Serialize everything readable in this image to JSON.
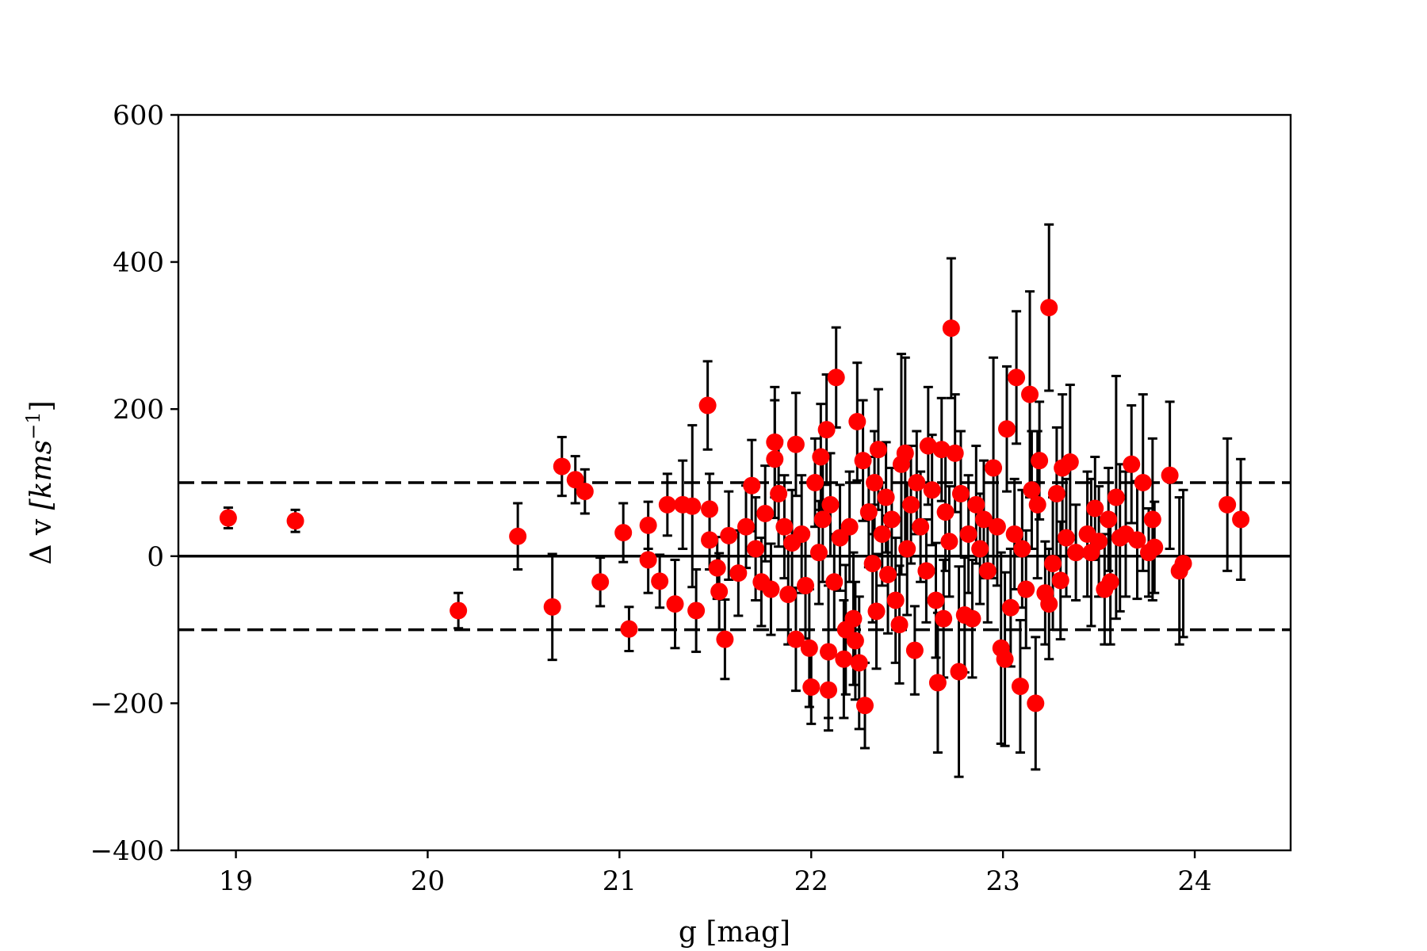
{
  "chart_data": {
    "type": "scatter",
    "title": "",
    "xlabel": "g [mag]",
    "ylabel_prefix": "Δ v ",
    "ylabel_unit": "[kms",
    "ylabel_exponent": "−1",
    "ylabel_close": "]",
    "xlim": [
      18.7,
      24.5
    ],
    "ylim": [
      -400,
      600
    ],
    "x_ticks": [
      19,
      20,
      21,
      22,
      23,
      24
    ],
    "x_tick_labels": [
      "19",
      "20",
      "21",
      "22",
      "23",
      "24"
    ],
    "y_ticks": [
      -400,
      -200,
      0,
      200,
      400,
      600
    ],
    "y_tick_labels": [
      "−400",
      "−200",
      "0",
      "200",
      "400",
      "600"
    ],
    "grid": false,
    "legend": "none",
    "reference_lines": [
      {
        "y": 0,
        "style": "solid"
      },
      {
        "y": 100,
        "style": "dashed"
      },
      {
        "y": -100,
        "style": "dashed"
      }
    ],
    "colors": {
      "points": "#ff0000",
      "errorbars": "#000000",
      "lines": "#000000"
    },
    "points": [
      {
        "x": 18.96,
        "y": 52,
        "err": 14
      },
      {
        "x": 19.31,
        "y": 48,
        "err": 15
      },
      {
        "x": 20.16,
        "y": -74,
        "err": 24
      },
      {
        "x": 20.47,
        "y": 27,
        "err": 45
      },
      {
        "x": 20.65,
        "y": -69,
        "err": 72
      },
      {
        "x": 20.7,
        "y": 122,
        "err": 40
      },
      {
        "x": 20.77,
        "y": 104,
        "err": 32
      },
      {
        "x": 20.82,
        "y": 88,
        "err": 30
      },
      {
        "x": 20.9,
        "y": -35,
        "err": 33
      },
      {
        "x": 21.02,
        "y": 32,
        "err": 40
      },
      {
        "x": 21.05,
        "y": -99,
        "err": 30
      },
      {
        "x": 21.15,
        "y": 42,
        "err": 32
      },
      {
        "x": 21.15,
        "y": -5,
        "err": 45
      },
      {
        "x": 21.21,
        "y": -34,
        "err": 36
      },
      {
        "x": 21.25,
        "y": 70,
        "err": 42
      },
      {
        "x": 21.29,
        "y": -65,
        "err": 60
      },
      {
        "x": 21.33,
        "y": 70,
        "err": 60
      },
      {
        "x": 21.38,
        "y": 68,
        "err": 110
      },
      {
        "x": 21.4,
        "y": -74,
        "err": 56
      },
      {
        "x": 21.46,
        "y": 205,
        "err": 60
      },
      {
        "x": 21.47,
        "y": 22,
        "err": 40
      },
      {
        "x": 21.47,
        "y": 64,
        "err": 48
      },
      {
        "x": 21.51,
        "y": -16,
        "err": 42
      },
      {
        "x": 21.52,
        "y": -48,
        "err": 52
      },
      {
        "x": 21.55,
        "y": -113,
        "err": 54
      },
      {
        "x": 21.57,
        "y": 28,
        "err": 60
      },
      {
        "x": 21.62,
        "y": -23,
        "err": 58
      },
      {
        "x": 21.66,
        "y": 40,
        "err": 56
      },
      {
        "x": 21.69,
        "y": 96,
        "err": 62
      },
      {
        "x": 21.71,
        "y": 10,
        "err": 70
      },
      {
        "x": 21.74,
        "y": -35,
        "err": 60
      },
      {
        "x": 21.76,
        "y": 58,
        "err": 65
      },
      {
        "x": 21.79,
        "y": -45,
        "err": 62
      },
      {
        "x": 21.81,
        "y": 155,
        "err": 75
      },
      {
        "x": 21.81,
        "y": 132,
        "err": 80
      },
      {
        "x": 21.83,
        "y": 85,
        "err": 72
      },
      {
        "x": 21.86,
        "y": 40,
        "err": 70
      },
      {
        "x": 21.88,
        "y": -52,
        "err": 68
      },
      {
        "x": 21.9,
        "y": 18,
        "err": 72
      },
      {
        "x": 21.92,
        "y": 152,
        "err": 70
      },
      {
        "x": 21.92,
        "y": -113,
        "err": 70
      },
      {
        "x": 21.95,
        "y": 30,
        "err": 80
      },
      {
        "x": 21.97,
        "y": -40,
        "err": 72
      },
      {
        "x": 21.99,
        "y": -125,
        "err": 80
      },
      {
        "x": 22.0,
        "y": -178,
        "err": 50
      },
      {
        "x": 22.02,
        "y": 100,
        "err": 60
      },
      {
        "x": 22.04,
        "y": 5,
        "err": 70
      },
      {
        "x": 22.05,
        "y": 135,
        "err": 72
      },
      {
        "x": 22.06,
        "y": 50,
        "err": 85
      },
      {
        "x": 22.08,
        "y": 172,
        "err": 75
      },
      {
        "x": 22.09,
        "y": -130,
        "err": 90
      },
      {
        "x": 22.09,
        "y": -182,
        "err": 55
      },
      {
        "x": 22.1,
        "y": 70,
        "err": 70
      },
      {
        "x": 22.12,
        "y": -35,
        "err": 65
      },
      {
        "x": 22.13,
        "y": 243,
        "err": 68
      },
      {
        "x": 22.15,
        "y": 25,
        "err": 72
      },
      {
        "x": 22.17,
        "y": -140,
        "err": 80
      },
      {
        "x": 22.18,
        "y": -100,
        "err": 88
      },
      {
        "x": 22.2,
        "y": 40,
        "err": 75
      },
      {
        "x": 22.22,
        "y": -85,
        "err": 90
      },
      {
        "x": 22.23,
        "y": -115,
        "err": 80
      },
      {
        "x": 22.24,
        "y": 183,
        "err": 80
      },
      {
        "x": 22.25,
        "y": -145,
        "err": 90
      },
      {
        "x": 22.27,
        "y": 130,
        "err": 82
      },
      {
        "x": 22.28,
        "y": -203,
        "err": 58
      },
      {
        "x": 22.3,
        "y": 60,
        "err": 75
      },
      {
        "x": 22.32,
        "y": -10,
        "err": 80
      },
      {
        "x": 22.33,
        "y": 100,
        "err": 70
      },
      {
        "x": 22.34,
        "y": -75,
        "err": 78
      },
      {
        "x": 22.35,
        "y": 145,
        "err": 82
      },
      {
        "x": 22.37,
        "y": 30,
        "err": 70
      },
      {
        "x": 22.39,
        "y": 80,
        "err": 75
      },
      {
        "x": 22.4,
        "y": -25,
        "err": 80
      },
      {
        "x": 22.42,
        "y": 50,
        "err": 70
      },
      {
        "x": 22.44,
        "y": -60,
        "err": 85
      },
      {
        "x": 22.46,
        "y": -93,
        "err": 80
      },
      {
        "x": 22.47,
        "y": 125,
        "err": 150
      },
      {
        "x": 22.49,
        "y": 140,
        "err": 130
      },
      {
        "x": 22.5,
        "y": 10,
        "err": 90
      },
      {
        "x": 22.52,
        "y": 70,
        "err": 80
      },
      {
        "x": 22.54,
        "y": -128,
        "err": 60
      },
      {
        "x": 22.55,
        "y": 100,
        "err": 70
      },
      {
        "x": 22.57,
        "y": 40,
        "err": 75
      },
      {
        "x": 22.6,
        "y": -20,
        "err": 70
      },
      {
        "x": 22.61,
        "y": 150,
        "err": 80
      },
      {
        "x": 22.63,
        "y": 90,
        "err": 75
      },
      {
        "x": 22.65,
        "y": -60,
        "err": 78
      },
      {
        "x": 22.66,
        "y": -172,
        "err": 95
      },
      {
        "x": 22.68,
        "y": 145,
        "err": 70
      },
      {
        "x": 22.69,
        "y": -85,
        "err": 80
      },
      {
        "x": 22.7,
        "y": 60,
        "err": 80
      },
      {
        "x": 22.72,
        "y": 20,
        "err": 75
      },
      {
        "x": 22.73,
        "y": 310,
        "err": 95
      },
      {
        "x": 22.75,
        "y": 140,
        "err": 80
      },
      {
        "x": 22.77,
        "y": -157,
        "err": 143
      },
      {
        "x": 22.78,
        "y": 85,
        "err": 85
      },
      {
        "x": 22.8,
        "y": -80,
        "err": 78
      },
      {
        "x": 22.82,
        "y": 30,
        "err": 80
      },
      {
        "x": 22.84,
        "y": -85,
        "err": 80
      },
      {
        "x": 22.86,
        "y": 70,
        "err": 80
      },
      {
        "x": 22.88,
        "y": 10,
        "err": 75
      },
      {
        "x": 22.9,
        "y": 50,
        "err": 80
      },
      {
        "x": 22.92,
        "y": -20,
        "err": 70
      },
      {
        "x": 22.95,
        "y": 120,
        "err": 150
      },
      {
        "x": 22.97,
        "y": 40,
        "err": 80
      },
      {
        "x": 22.99,
        "y": -125,
        "err": 130
      },
      {
        "x": 23.01,
        "y": -140,
        "err": 118
      },
      {
        "x": 23.02,
        "y": 173,
        "err": 85
      },
      {
        "x": 23.04,
        "y": -70,
        "err": 80
      },
      {
        "x": 23.06,
        "y": 30,
        "err": 75
      },
      {
        "x": 23.07,
        "y": 243,
        "err": 90
      },
      {
        "x": 23.09,
        "y": -177,
        "err": 90
      },
      {
        "x": 23.1,
        "y": 10,
        "err": 80
      },
      {
        "x": 23.12,
        "y": -45,
        "err": 80
      },
      {
        "x": 23.14,
        "y": 220,
        "err": 140
      },
      {
        "x": 23.15,
        "y": 90,
        "err": 80
      },
      {
        "x": 23.17,
        "y": -200,
        "err": 90
      },
      {
        "x": 23.18,
        "y": 70,
        "err": 100
      },
      {
        "x": 23.19,
        "y": 130,
        "err": 80
      },
      {
        "x": 23.22,
        "y": -50,
        "err": 70
      },
      {
        "x": 23.24,
        "y": 338,
        "err": 113
      },
      {
        "x": 23.24,
        "y": -65,
        "err": 75
      },
      {
        "x": 23.26,
        "y": -10,
        "err": 90
      },
      {
        "x": 23.28,
        "y": 85,
        "err": 90
      },
      {
        "x": 23.3,
        "y": -33,
        "err": 80
      },
      {
        "x": 23.31,
        "y": 120,
        "err": 100
      },
      {
        "x": 23.33,
        "y": 25,
        "err": 80
      },
      {
        "x": 23.35,
        "y": 128,
        "err": 105
      },
      {
        "x": 23.38,
        "y": 5,
        "err": 65
      },
      {
        "x": 23.44,
        "y": 30,
        "err": 85
      },
      {
        "x": 23.46,
        "y": 5,
        "err": 100
      },
      {
        "x": 23.48,
        "y": 65,
        "err": 70
      },
      {
        "x": 23.5,
        "y": 20,
        "err": 75
      },
      {
        "x": 23.53,
        "y": -45,
        "err": 75
      },
      {
        "x": 23.55,
        "y": 50,
        "err": 70
      },
      {
        "x": 23.56,
        "y": -35,
        "err": 85
      },
      {
        "x": 23.59,
        "y": 80,
        "err": 165
      },
      {
        "x": 23.61,
        "y": 25,
        "err": 100
      },
      {
        "x": 23.64,
        "y": 30,
        "err": 85
      },
      {
        "x": 23.67,
        "y": 125,
        "err": 80
      },
      {
        "x": 23.7,
        "y": 22,
        "err": 80
      },
      {
        "x": 23.73,
        "y": 100,
        "err": 120
      },
      {
        "x": 23.76,
        "y": 5,
        "err": 60
      },
      {
        "x": 23.78,
        "y": 50,
        "err": 110
      },
      {
        "x": 23.79,
        "y": 12,
        "err": 62
      },
      {
        "x": 23.87,
        "y": 110,
        "err": 100
      },
      {
        "x": 23.92,
        "y": -20,
        "err": 100
      },
      {
        "x": 23.94,
        "y": -10,
        "err": 100
      },
      {
        "x": 24.17,
        "y": 70,
        "err": 90
      },
      {
        "x": 24.24,
        "y": 50,
        "err": 82
      }
    ]
  }
}
